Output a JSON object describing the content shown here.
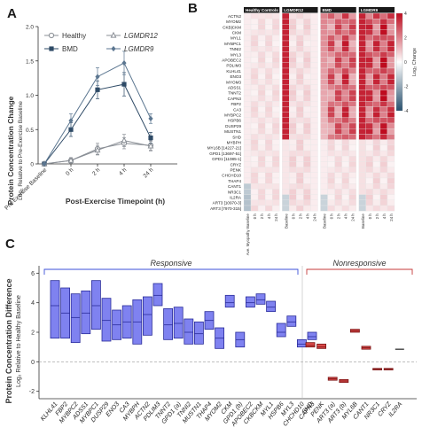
{
  "panels": {
    "a": "A",
    "b": "B",
    "c": "C"
  },
  "chart_data": [
    {
      "type": "line",
      "panel": "A",
      "title": "",
      "ylabel_line1": "Protein Concentration Change",
      "ylabel_line2": "Log₂ Relative to Pre-Exercise Baseline",
      "xlabel": "Post-Exercise Timepoint (h)",
      "categories": [
        "Pre-Exercise Baseline",
        "0 h",
        "2 h",
        "4 h",
        "24 h"
      ],
      "yticks": [
        "0",
        "0.5",
        "1.0",
        "1.5",
        "2.0"
      ],
      "ylim": [
        0,
        2.0
      ],
      "series": [
        {
          "name": "Healthy",
          "marker": "circle",
          "color": "#8a8f96",
          "values": [
            0.0,
            0.05,
            0.22,
            0.3,
            0.27
          ],
          "err": [
            0,
            0.04,
            0.08,
            0.08,
            0.07
          ]
        },
        {
          "name": "BMD",
          "marker": "square",
          "color": "#2e4a66",
          "values": [
            0.0,
            0.5,
            1.08,
            1.16,
            0.38
          ],
          "err": [
            0,
            0.1,
            0.13,
            0.17,
            0.08
          ]
        },
        {
          "name": "LGMDR12",
          "marker": "triangle",
          "color": "#8a8f96",
          "values": [
            0.0,
            0.05,
            0.2,
            0.34,
            0.26
          ],
          "err": [
            0,
            0.04,
            0.07,
            0.09,
            0.07
          ]
        },
        {
          "name": "LGMDR9",
          "marker": "diamond",
          "color": "#5b7690",
          "values": [
            0.0,
            0.63,
            1.27,
            1.47,
            0.66
          ],
          "err": [
            0,
            0.1,
            0.13,
            0.17,
            0.07
          ]
        }
      ]
    },
    {
      "type": "heatmap",
      "panel": "B",
      "groups": [
        "Healthy Controls",
        "LGMDR12",
        "BMD",
        "LGMDR9"
      ],
      "col_labels": [
        "Ave. Myopathy Baseline",
        "0 h",
        "2 h",
        "4 h",
        "24 h",
        "Baseline",
        "0 h",
        "2 h",
        "4 h",
        "24 h",
        "Baseline",
        "0 h",
        "2 h",
        "4 h",
        "24 h",
        "Baseline",
        "0 h",
        "2 h",
        "4 h",
        "24 h"
      ],
      "rows": [
        "ACTN2",
        "MYOM2",
        "CKB|CKM",
        "CKM",
        "MYL1",
        "MYBPC1",
        "TNNI2",
        "MYL3",
        "APOBEC2",
        "PDLIM3",
        "KLHL41",
        "ENO3",
        "MYOM3",
        "ADSS1",
        "TNNT2",
        "CAPN3",
        "FBP2",
        "CA3",
        "MYBPC2",
        "HSPB6",
        "DUSP29",
        "MUSTN1",
        "SHD",
        "MYBPH",
        "MYL6B [14227-21]",
        "GPD1 [13697-51]",
        "GPD1 [11085-1]",
        "CRYZ",
        "PENK",
        "CHCHD10",
        "THAP4",
        "CANT1",
        "NR3C1",
        "IL2RA",
        "ART3 [10970-3]",
        "ART3 [7970-315]"
      ],
      "colorbar_label": "Log₂ Change",
      "colorbar_ticks": [
        "4",
        "2",
        "0",
        "-2",
        "-4"
      ],
      "scale": [
        -4,
        4
      ]
    },
    {
      "type": "box",
      "panel": "C",
      "ylabel_line1": "Protein Concentration Difference",
      "ylabel_line2": "Log₂ Relative to Healthy Baseline",
      "yticks": [
        "-2",
        "0",
        "2",
        "4",
        "6"
      ],
      "ylim": [
        -2.5,
        6.5
      ],
      "group_labels": [
        "Responsive",
        "Nonresponsive"
      ],
      "responsive": [
        {
          "name": "KLHL41",
          "low": 1.6,
          "mid": 3.8,
          "high": 5.5
        },
        {
          "name": "FBP2",
          "low": 1.6,
          "mid": 3.3,
          "high": 5.0
        },
        {
          "name": "MYBPC2",
          "low": 1.3,
          "mid": 3.0,
          "high": 4.6
        },
        {
          "name": "ADSS1",
          "low": 1.9,
          "mid": 3.3,
          "high": 4.8
        },
        {
          "name": "MYBPC1",
          "low": 2.2,
          "mid": 3.8,
          "high": 5.5
        },
        {
          "name": "DUSP29",
          "low": 1.4,
          "mid": 2.8,
          "high": 4.3
        },
        {
          "name": "ENO3",
          "low": 1.5,
          "mid": 2.5,
          "high": 3.5
        },
        {
          "name": "CA3",
          "low": 1.6,
          "mid": 2.7,
          "high": 3.8
        },
        {
          "name": "MYBPH",
          "low": 1.2,
          "mid": 2.7,
          "high": 4.2
        },
        {
          "name": "ACTN2",
          "low": 1.8,
          "mid": 3.2,
          "high": 4.4
        },
        {
          "name": "PDLIM3",
          "low": 3.8,
          "mid": 4.5,
          "high": 5.3
        },
        {
          "name": "TNNT2",
          "low": 1.5,
          "mid": 2.5,
          "high": 3.6
        },
        {
          "name": "GPD1 (a)",
          "low": 1.6,
          "mid": 2.6,
          "high": 3.7
        },
        {
          "name": "TNNI2",
          "low": 1.2,
          "mid": 2.0,
          "high": 2.9
        },
        {
          "name": "MUSTN1",
          "low": 1.2,
          "mid": 1.9,
          "high": 2.7
        },
        {
          "name": "THAP4",
          "low": 2.2,
          "mid": 2.8,
          "high": 3.4
        },
        {
          "name": "MYOM2",
          "low": 0.9,
          "mid": 1.6,
          "high": 2.3
        },
        {
          "name": "CKM",
          "low": 3.7,
          "mid": 4.0,
          "high": 4.5
        },
        {
          "name": "GPD1 (b)",
          "low": 1.0,
          "mid": 1.5,
          "high": 2.0
        },
        {
          "name": "APOBEC2",
          "low": 3.7,
          "mid": 4.0,
          "high": 4.4
        },
        {
          "name": "CKBCKM",
          "low": 3.9,
          "mid": 4.2,
          "high": 4.6
        },
        {
          "name": "MYL1",
          "low": 3.4,
          "mid": 3.7,
          "high": 4.1
        },
        {
          "name": "HSPB6",
          "low": 1.7,
          "mid": 2.0,
          "high": 2.6
        },
        {
          "name": "MYL3",
          "low": 2.4,
          "mid": 2.7,
          "high": 3.1
        },
        {
          "name": "CHCHD10",
          "low": 1.0,
          "mid": 1.2,
          "high": 1.5
        },
        {
          "name": "CAPN3",
          "low": 1.5,
          "mid": 1.7,
          "high": 2.0
        }
      ],
      "nonresponsive": [
        {
          "name": "SHD",
          "low": 1.0,
          "mid": 1.1,
          "high": 1.3
        },
        {
          "name": "PENK",
          "low": 0.9,
          "mid": 1.0,
          "high": 1.2
        },
        {
          "name": "ART3 (a)",
          "low": -1.25,
          "mid": -1.15,
          "high": -1.05
        },
        {
          "name": "ART3 (b)",
          "low": -1.4,
          "mid": -1.3,
          "high": -1.2
        },
        {
          "name": "MYL6B",
          "low": 2.0,
          "mid": 2.1,
          "high": 2.2
        },
        {
          "name": "CANT1",
          "low": 0.85,
          "mid": 0.95,
          "high": 1.05
        },
        {
          "name": "NR3C1",
          "low": -0.55,
          "mid": -0.5,
          "high": -0.45
        },
        {
          "name": "CRYZ",
          "low": -0.55,
          "mid": -0.5,
          "high": -0.45
        },
        {
          "name": "IL2RA",
          "low": 0.85,
          "mid": 0.85,
          "high": 0.85
        }
      ]
    }
  ]
}
